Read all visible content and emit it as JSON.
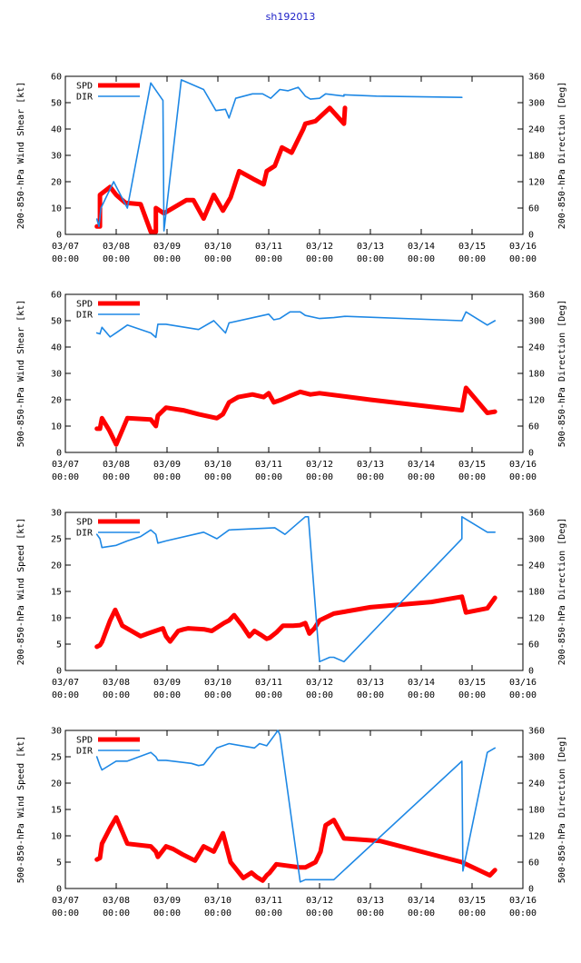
{
  "title": "sh192013",
  "colors": {
    "spd": "#ff0000",
    "dir": "#1e88e5",
    "title": "#1f22c8"
  },
  "chart_data": [
    {
      "type": "line",
      "title": "",
      "ylabel": "200-850-hPa Wind Shear [kt]",
      "y2label": "200-850-hPa Direction [Deg]",
      "ylim": [
        0,
        60
      ],
      "yticks": [
        0,
        10,
        20,
        30,
        40,
        50,
        60
      ],
      "y2lim": [
        0,
        360
      ],
      "y2ticks": [
        0,
        60,
        120,
        180,
        240,
        300,
        360
      ],
      "xlim": [
        0,
        9
      ],
      "xticks": [
        "03/07\n00:00",
        "03/08\n00:00",
        "03/09\n00:00",
        "03/10\n00:00",
        "03/11\n00:00",
        "03/12\n00:00",
        "03/13\n00:00",
        "03/14\n00:00",
        "03/15\n00:00",
        "03/16\n00:00"
      ],
      "legend": [
        "SPD",
        "DIR"
      ],
      "series": [
        {
          "name": "SPD",
          "axis": "left",
          "x": [
            0.62,
            0.68,
            0.68,
            0.88,
            1.0,
            1.18,
            1.48,
            1.68,
            1.78,
            1.78,
            1.94,
            2.38,
            2.52,
            2.72,
            2.92,
            3.1,
            3.25,
            3.42,
            3.7,
            3.9,
            3.96,
            4.12,
            4.26,
            4.45,
            4.68,
            4.72,
            4.92,
            5.2,
            5.48,
            5.5
          ],
          "y": [
            3,
            3,
            15,
            18,
            15,
            12,
            11.5,
            1,
            1,
            10,
            8,
            13,
            13,
            6,
            15,
            9,
            14,
            24,
            21,
            19,
            24,
            26,
            33,
            31,
            40,
            42,
            43,
            48,
            42,
            48
          ]
        },
        {
          "name": "DIR",
          "axis": "right",
          "x": [
            0.62,
            0.66,
            0.7,
            0.95,
            1.22,
            1.68,
            1.92,
            1.94,
            2.28,
            2.72,
            2.96,
            3.15,
            3.22,
            3.35,
            3.68,
            3.88,
            4.04,
            4.22,
            4.38,
            4.58,
            4.72,
            4.82,
            5.0,
            5.12,
            5.48,
            5.48,
            6.12,
            7.8
          ],
          "y": [
            35,
            18,
            60,
            120,
            60,
            345,
            305,
            8,
            352,
            330,
            282,
            285,
            265,
            310,
            320,
            320,
            310,
            330,
            327,
            335,
            315,
            308,
            310,
            320,
            315,
            318,
            315,
            312
          ]
        }
      ]
    },
    {
      "type": "line",
      "title": "",
      "ylabel": "500-850-hPa Wind Shear [kt]",
      "y2label": "500-850-hPa Direction [Deg]",
      "ylim": [
        0,
        60
      ],
      "yticks": [
        0,
        10,
        20,
        30,
        40,
        50,
        60
      ],
      "y2lim": [
        0,
        360
      ],
      "y2ticks": [
        0,
        60,
        120,
        180,
        240,
        300,
        360
      ],
      "xlim": [
        0,
        9
      ],
      "xticks": [
        "03/07\n00:00",
        "03/08\n00:00",
        "03/09\n00:00",
        "03/10\n00:00",
        "03/11\n00:00",
        "03/12\n00:00",
        "03/13\n00:00",
        "03/14\n00:00",
        "03/15\n00:00",
        "03/16\n00:00"
      ],
      "legend": [
        "SPD",
        "DIR"
      ],
      "series": [
        {
          "name": "SPD",
          "axis": "left",
          "x": [
            0.62,
            0.68,
            0.72,
            0.86,
            1.0,
            1.22,
            1.68,
            1.78,
            1.82,
            1.98,
            2.32,
            2.62,
            2.98,
            3.1,
            3.22,
            3.4,
            3.68,
            3.9,
            4.0,
            4.1,
            4.25,
            4.43,
            4.62,
            4.82,
            5.0,
            6.0,
            7.8,
            7.88,
            8.3,
            8.45
          ],
          "y": [
            9,
            9,
            13,
            8.5,
            3,
            13,
            12.5,
            10,
            14,
            17,
            16,
            14.5,
            13,
            14.5,
            19,
            21,
            22,
            21,
            22.5,
            19,
            20,
            21.5,
            23,
            22,
            22.5,
            20,
            16,
            24.5,
            15,
            15.5
          ]
        },
        {
          "name": "DIR",
          "axis": "right",
          "x": [
            0.62,
            0.68,
            0.72,
            0.88,
            1.22,
            1.68,
            1.78,
            1.82,
            1.98,
            2.62,
            2.92,
            3.15,
            3.22,
            4.0,
            4.1,
            4.22,
            4.42,
            4.62,
            4.72,
            5.0,
            5.28,
            5.5,
            7.8,
            7.88,
            8.3,
            8.45
          ],
          "y": [
            272,
            270,
            285,
            263,
            290,
            272,
            262,
            292,
            292,
            280,
            300,
            272,
            295,
            315,
            302,
            305,
            320,
            320,
            312,
            305,
            307,
            310,
            300,
            320,
            290,
            300
          ]
        }
      ]
    },
    {
      "type": "line",
      "title": "",
      "ylabel": "200-850-hPa Wind Speed [kt]",
      "y2label": "200-850-hPa Direction [Deg]",
      "ylim": [
        0,
        30
      ],
      "yticks": [
        0,
        5,
        10,
        15,
        20,
        25,
        30
      ],
      "y2lim": [
        0,
        360
      ],
      "y2ticks": [
        0,
        60,
        120,
        180,
        240,
        300,
        360
      ],
      "xlim": [
        0,
        9
      ],
      "xticks": [
        "03/07\n00:00",
        "03/08\n00:00",
        "03/09\n00:00",
        "03/10\n00:00",
        "03/11\n00:00",
        "03/12\n00:00",
        "03/13\n00:00",
        "03/14\n00:00",
        "03/15\n00:00",
        "03/16\n00:00"
      ],
      "legend": [
        "SPD",
        "DIR"
      ],
      "series": [
        {
          "name": "SPD",
          "axis": "left",
          "x": [
            0.62,
            0.68,
            0.72,
            0.88,
            0.98,
            1.12,
            1.48,
            1.62,
            1.92,
            1.98,
            2.06,
            2.22,
            2.32,
            2.42,
            2.74,
            2.88,
            3.12,
            3.22,
            3.32,
            3.48,
            3.62,
            3.72,
            3.84,
            3.96,
            4.02,
            4.15,
            4.28,
            4.48,
            4.62,
            4.72,
            4.8,
            4.9,
            5.0,
            5.28,
            6.0,
            7.2,
            7.8,
            7.88,
            8.3,
            8.45
          ],
          "y": [
            4.5,
            4.8,
            5.4,
            9.5,
            11.5,
            8.5,
            6.5,
            7.0,
            8.0,
            6.5,
            5.5,
            7.5,
            7.8,
            8.0,
            7.8,
            7.5,
            9.0,
            9.5,
            10.5,
            8.5,
            6.5,
            7.5,
            6.8,
            6.0,
            6.2,
            7.2,
            8.5,
            8.5,
            8.6,
            9.0,
            7.0,
            8.0,
            9.5,
            10.8,
            12.0,
            13.0,
            14.0,
            11.0,
            11.8,
            13.8
          ]
        },
        {
          "name": "DIR",
          "axis": "right",
          "x": [
            0.62,
            0.68,
            0.72,
            1.0,
            1.22,
            1.48,
            1.68,
            1.78,
            1.82,
            1.98,
            2.72,
            2.98,
            3.22,
            4.12,
            4.32,
            4.72,
            4.75,
            4.78,
            5.0,
            5.2,
            5.28,
            5.48,
            7.8,
            7.8,
            8.3,
            8.45
          ],
          "y": [
            310,
            300,
            280,
            285,
            295,
            305,
            320,
            310,
            290,
            295,
            315,
            300,
            320,
            325,
            310,
            350,
            350,
            350,
            20,
            30,
            30,
            20,
            300,
            350,
            315,
            315
          ]
        }
      ]
    },
    {
      "type": "line",
      "title": "",
      "ylabel": "500-850-hPa Wind Speed [kt]",
      "y2label": "500-850-hPa Direction [Deg]",
      "ylim": [
        0,
        30
      ],
      "yticks": [
        0,
        5,
        10,
        15,
        20,
        25,
        30
      ],
      "y2lim": [
        0,
        360
      ],
      "y2ticks": [
        0,
        60,
        120,
        180,
        240,
        300,
        360
      ],
      "xlim": [
        0,
        9
      ],
      "xticks": [
        "03/07\n00:00",
        "03/08\n00:00",
        "03/09\n00:00",
        "03/10\n00:00",
        "03/11\n00:00",
        "03/12\n00:00",
        "03/13\n00:00",
        "03/14\n00:00",
        "03/15\n00:00",
        "03/16\n00:00"
      ],
      "legend": [
        "SPD",
        "DIR"
      ],
      "series": [
        {
          "name": "SPD",
          "axis": "left",
          "x": [
            0.62,
            0.68,
            0.72,
            0.88,
            1.0,
            1.22,
            1.68,
            1.78,
            1.82,
            1.98,
            2.12,
            2.3,
            2.55,
            2.72,
            2.92,
            3.1,
            3.25,
            3.5,
            3.66,
            3.76,
            3.88,
            3.96,
            4.02,
            4.15,
            4.62,
            4.72,
            4.92,
            5.02,
            5.12,
            5.28,
            5.48,
            6.2,
            7.8,
            8.35,
            8.45
          ],
          "y": [
            5.5,
            5.8,
            8.5,
            11.5,
            13.5,
            8.5,
            8.0,
            7.0,
            6.0,
            8.0,
            7.5,
            6.5,
            5.3,
            8.0,
            7.0,
            10.5,
            5.0,
            2.0,
            3.0,
            2.2,
            1.5,
            2.5,
            3.0,
            4.6,
            4.0,
            4.0,
            5.0,
            7.0,
            12.0,
            13.0,
            9.5,
            9.0,
            5.0,
            2.5,
            3.5
          ]
        },
        {
          "name": "DIR",
          "axis": "right",
          "x": [
            0.62,
            0.68,
            0.72,
            1.0,
            1.22,
            1.68,
            1.78,
            1.82,
            1.98,
            2.48,
            2.62,
            2.72,
            2.98,
            3.22,
            3.72,
            3.82,
            3.96,
            4.12,
            4.18,
            4.22,
            4.62,
            4.72,
            4.92,
            5.28,
            7.8,
            7.82,
            8.3,
            8.45
          ],
          "y": [
            300,
            280,
            270,
            290,
            290,
            310,
            300,
            292,
            292,
            285,
            280,
            282,
            320,
            330,
            320,
            330,
            325,
            350,
            360,
            350,
            15,
            20,
            20,
            20,
            290,
            40,
            310,
            320
          ]
        }
      ]
    }
  ]
}
